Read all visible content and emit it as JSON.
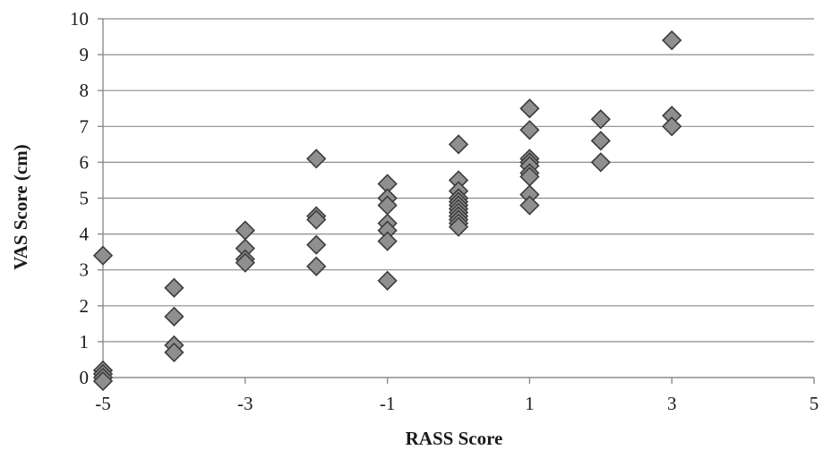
{
  "chart_data": {
    "type": "scatter",
    "xlabel": "RASS Score",
    "ylabel": "VAS Score (cm)",
    "xlim": [
      -5,
      5
    ],
    "ylim": [
      0,
      10
    ],
    "x_ticks": [
      -5,
      -3,
      -1,
      1,
      3,
      5
    ],
    "y_ticks": [
      0,
      1,
      2,
      3,
      4,
      5,
      6,
      7,
      8,
      9,
      10
    ],
    "grid": "horizontal",
    "marker": "diamond",
    "colors": {
      "marker_fill": "#8f8f8f",
      "marker_stroke": "#3c3c3c",
      "grid": "#8c8c8c"
    },
    "series": [
      {
        "points": [
          [
            -5,
            3.4
          ],
          [
            -5,
            0.2
          ],
          [
            -5,
            0.1
          ],
          [
            -5,
            0.0
          ],
          [
            -5,
            -0.1
          ],
          [
            -4,
            2.5
          ],
          [
            -4,
            1.7
          ],
          [
            -4,
            0.9
          ],
          [
            -4,
            0.7
          ],
          [
            -3,
            4.1
          ],
          [
            -3,
            3.6
          ],
          [
            -3,
            3.3
          ],
          [
            -3,
            3.2
          ],
          [
            -2,
            6.1
          ],
          [
            -2,
            4.5
          ],
          [
            -2,
            4.4
          ],
          [
            -2,
            3.7
          ],
          [
            -2,
            3.1
          ],
          [
            -1,
            5.4
          ],
          [
            -1,
            5.0
          ],
          [
            -1,
            4.8
          ],
          [
            -1,
            4.3
          ],
          [
            -1,
            4.1
          ],
          [
            -1,
            3.8
          ],
          [
            -1,
            2.7
          ],
          [
            0,
            6.5
          ],
          [
            0,
            5.5
          ],
          [
            0,
            5.2
          ],
          [
            0,
            5.0
          ],
          [
            0,
            4.9
          ],
          [
            0,
            4.8
          ],
          [
            0,
            4.7
          ],
          [
            0,
            4.6
          ],
          [
            0,
            4.5
          ],
          [
            0,
            4.4
          ],
          [
            0,
            4.3
          ],
          [
            0,
            4.2
          ],
          [
            1,
            7.5
          ],
          [
            1,
            6.9
          ],
          [
            1,
            6.1
          ],
          [
            1,
            6.0
          ],
          [
            1,
            5.9
          ],
          [
            1,
            5.7
          ],
          [
            1,
            5.6
          ],
          [
            1,
            5.1
          ],
          [
            1,
            4.8
          ],
          [
            2,
            7.2
          ],
          [
            2,
            6.6
          ],
          [
            2,
            6.0
          ],
          [
            3,
            9.4
          ],
          [
            3,
            7.3
          ],
          [
            3,
            7.0
          ]
        ]
      }
    ]
  }
}
